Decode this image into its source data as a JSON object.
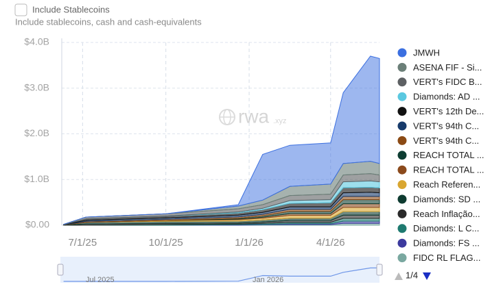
{
  "controls": {
    "checkbox_label": "Include Stablecoins",
    "checkbox_hint": "Include stablecoins, cash and cash-equivalents",
    "watermark": "rwa",
    "watermark_suffix": ".xyz",
    "pagination": "1/4",
    "navigator_labels": [
      "Jul 2025",
      "Jan 2026"
    ]
  },
  "chart_data": {
    "type": "stacked_area",
    "x": [
      "6/10/25",
      "7/5/25",
      "10/1/25",
      "12/20/25",
      "1/16/26",
      "2/15/26",
      "4/1/26",
      "4/15/26",
      "5/15/26",
      "5/25/26"
    ],
    "xlim": [
      "6/8/25",
      "5/25/26"
    ],
    "xticks": [
      "7/1/25",
      "10/1/25",
      "1/1/26",
      "4/1/26"
    ],
    "ylim": [
      0,
      4000000000
    ],
    "yticks": [
      {
        "value": 0,
        "label": "$0.00"
      },
      {
        "value": 1000000000,
        "label": "$1.0B"
      },
      {
        "value": 2000000000,
        "label": "$2.0B"
      },
      {
        "value": 3000000000,
        "label": "$3.0B"
      },
      {
        "value": 4000000000,
        "label": "$4.0B"
      }
    ],
    "grid": true,
    "series": [
      {
        "name": "JMWH",
        "color": "#3b6fe0",
        "values": [
          0,
          0,
          0,
          30000000,
          1000000000,
          900000000,
          900000000,
          1550000000,
          2300000000,
          2300000000
        ]
      },
      {
        "name": "ASENA FIF - Si...",
        "color": "#6b7f78",
        "values": [
          0,
          0,
          0,
          60000000,
          100000000,
          200000000,
          220000000,
          250000000,
          270000000,
          250000000
        ]
      },
      {
        "name": "VERT's FIDC B...",
        "color": "#5d6063",
        "values": [
          5000000,
          40000000,
          50000000,
          70000000,
          80000000,
          110000000,
          120000000,
          150000000,
          160000000,
          150000000
        ]
      },
      {
        "name": "Diamonds: AD ...",
        "color": "#5bc8e0",
        "values": [
          0,
          0,
          0,
          20000000,
          30000000,
          60000000,
          70000000,
          130000000,
          140000000,
          130000000
        ]
      },
      {
        "name": "VERT's 12th De...",
        "color": "#111111",
        "values": [
          5000000,
          30000000,
          40000000,
          50000000,
          60000000,
          80000000,
          90000000,
          110000000,
          110000000,
          110000000
        ]
      },
      {
        "name": "VERT's 94th C...",
        "color": "#173b6b",
        "values": [
          3000000,
          25000000,
          30000000,
          35000000,
          40000000,
          50000000,
          50000000,
          80000000,
          90000000,
          80000000
        ]
      },
      {
        "name": "VERT's 94th C...",
        "color": "#8b4a14",
        "values": [
          2000000,
          20000000,
          25000000,
          30000000,
          35000000,
          45000000,
          45000000,
          70000000,
          70000000,
          70000000
        ]
      },
      {
        "name": "REACH TOTAL ...",
        "color": "#0d3d32",
        "values": [
          0,
          0,
          0,
          20000000,
          30000000,
          50000000,
          50000000,
          90000000,
          90000000,
          90000000
        ]
      },
      {
        "name": "REACH TOTAL ...",
        "color": "#8b4a1c",
        "values": [
          0,
          0,
          0,
          15000000,
          20000000,
          40000000,
          40000000,
          80000000,
          80000000,
          80000000
        ]
      },
      {
        "name": "Reach Referen...",
        "color": "#d9a630",
        "values": [
          0,
          0,
          20000000,
          30000000,
          40000000,
          60000000,
          60000000,
          90000000,
          90000000,
          90000000
        ]
      },
      {
        "name": "Diamonds: SD ...",
        "color": "#0e3b30",
        "values": [
          5000000,
          40000000,
          45000000,
          40000000,
          45000000,
          50000000,
          50000000,
          80000000,
          80000000,
          80000000
        ]
      },
      {
        "name": "Reach Inflação...",
        "color": "#2a2a2a",
        "values": [
          0,
          25000000,
          25000000,
          25000000,
          30000000,
          40000000,
          40000000,
          70000000,
          70000000,
          70000000
        ]
      },
      {
        "name": "Diamonds: L C...",
        "color": "#1e7a70",
        "values": [
          0,
          0,
          15000000,
          15000000,
          20000000,
          30000000,
          30000000,
          60000000,
          60000000,
          60000000
        ]
      },
      {
        "name": "Diamonds: FS ...",
        "color": "#3c3a9e",
        "values": [
          0,
          0,
          0,
          10000000,
          10000000,
          20000000,
          20000000,
          50000000,
          50000000,
          50000000
        ]
      },
      {
        "name": "FIDC RL FLAG...",
        "color": "#7aa8a0",
        "values": [
          0,
          0,
          0,
          0,
          10000000,
          15000000,
          15000000,
          40000000,
          40000000,
          40000000
        ]
      }
    ]
  }
}
